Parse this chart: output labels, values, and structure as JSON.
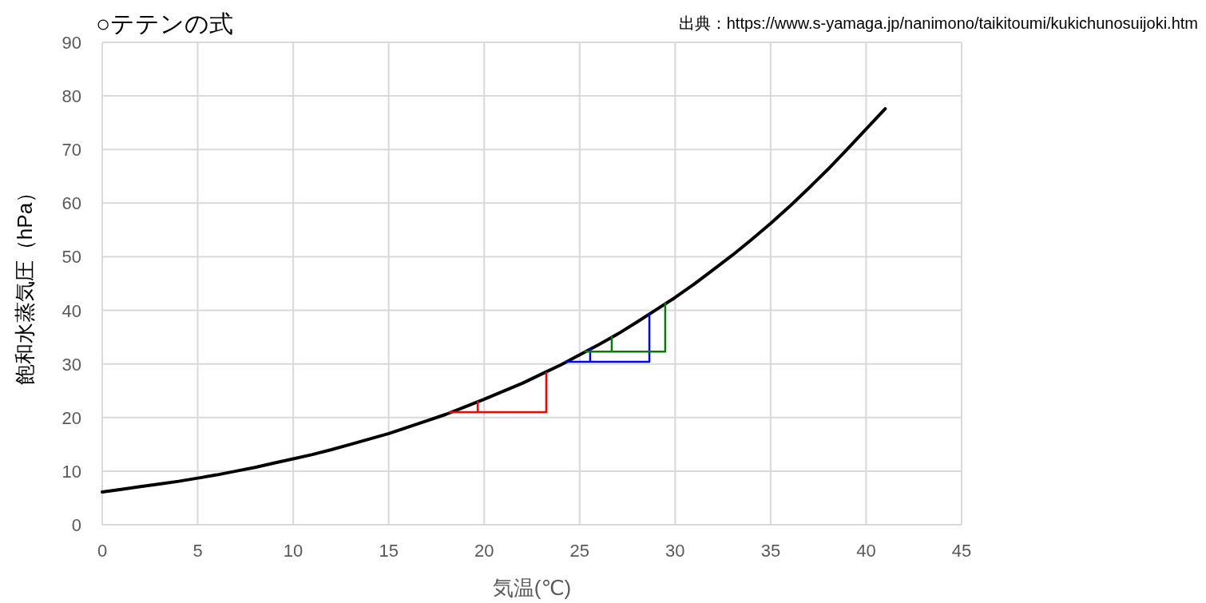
{
  "chart_data": {
    "type": "line",
    "title": "○テテンの式",
    "xlabel": "気温(℃)",
    "ylabel": "飽和水蒸気圧（hPa）",
    "annotations": [
      "出典：https://www.s-yamaga.jp/nanimono/taikitoumi/kukichunosuijoki.htm"
    ],
    "xlim": [
      0,
      45
    ],
    "xticks": [
      0,
      5,
      10,
      15,
      20,
      25,
      30,
      35,
      40,
      45
    ],
    "ylim": [
      0,
      90
    ],
    "yticks": [
      0,
      10,
      20,
      30,
      40,
      50,
      60,
      70,
      80,
      90
    ],
    "grid": true,
    "series": [
      {
        "color": "#000000",
        "x": [
          0,
          1,
          2,
          3,
          4,
          5,
          6,
          7,
          8,
          9,
          10,
          11,
          12,
          13,
          14,
          15,
          16,
          17,
          18,
          19,
          20,
          21,
          22,
          23,
          24,
          25,
          26,
          27,
          28,
          29,
          30,
          31,
          32,
          33,
          34,
          35,
          36,
          37,
          38,
          39,
          40,
          41
        ],
        "values": [
          6.1,
          6.6,
          7.1,
          7.6,
          8.1,
          8.7,
          9.3,
          10.0,
          10.7,
          11.5,
          12.3,
          13.1,
          14.0,
          15.0,
          16.0,
          17.0,
          18.2,
          19.4,
          20.6,
          22.0,
          23.4,
          24.9,
          26.4,
          28.1,
          29.8,
          31.7,
          33.6,
          35.6,
          37.8,
          40.1,
          42.4,
          44.9,
          47.6,
          50.3,
          53.2,
          56.2,
          59.4,
          62.8,
          66.3,
          70.0,
          73.8,
          77.6
        ]
      },
      {
        "color": "#ff0000",
        "x": [
          19.66,
          19.66,
          18.2,
          23.25,
          23.25
        ],
        "values": [
          22.9,
          21.0,
          21.0,
          21.0,
          28.3
        ]
      },
      {
        "color": "#0000ff",
        "x": [
          25.55,
          25.55,
          24.26,
          28.65,
          28.65
        ],
        "values": [
          32.8,
          30.4,
          30.4,
          30.4,
          39.3
        ]
      },
      {
        "color": "#008000",
        "x": [
          26.68,
          26.68,
          25.3,
          29.48,
          29.48
        ],
        "values": [
          35.0,
          32.3,
          32.3,
          32.3,
          41.3
        ]
      }
    ]
  }
}
